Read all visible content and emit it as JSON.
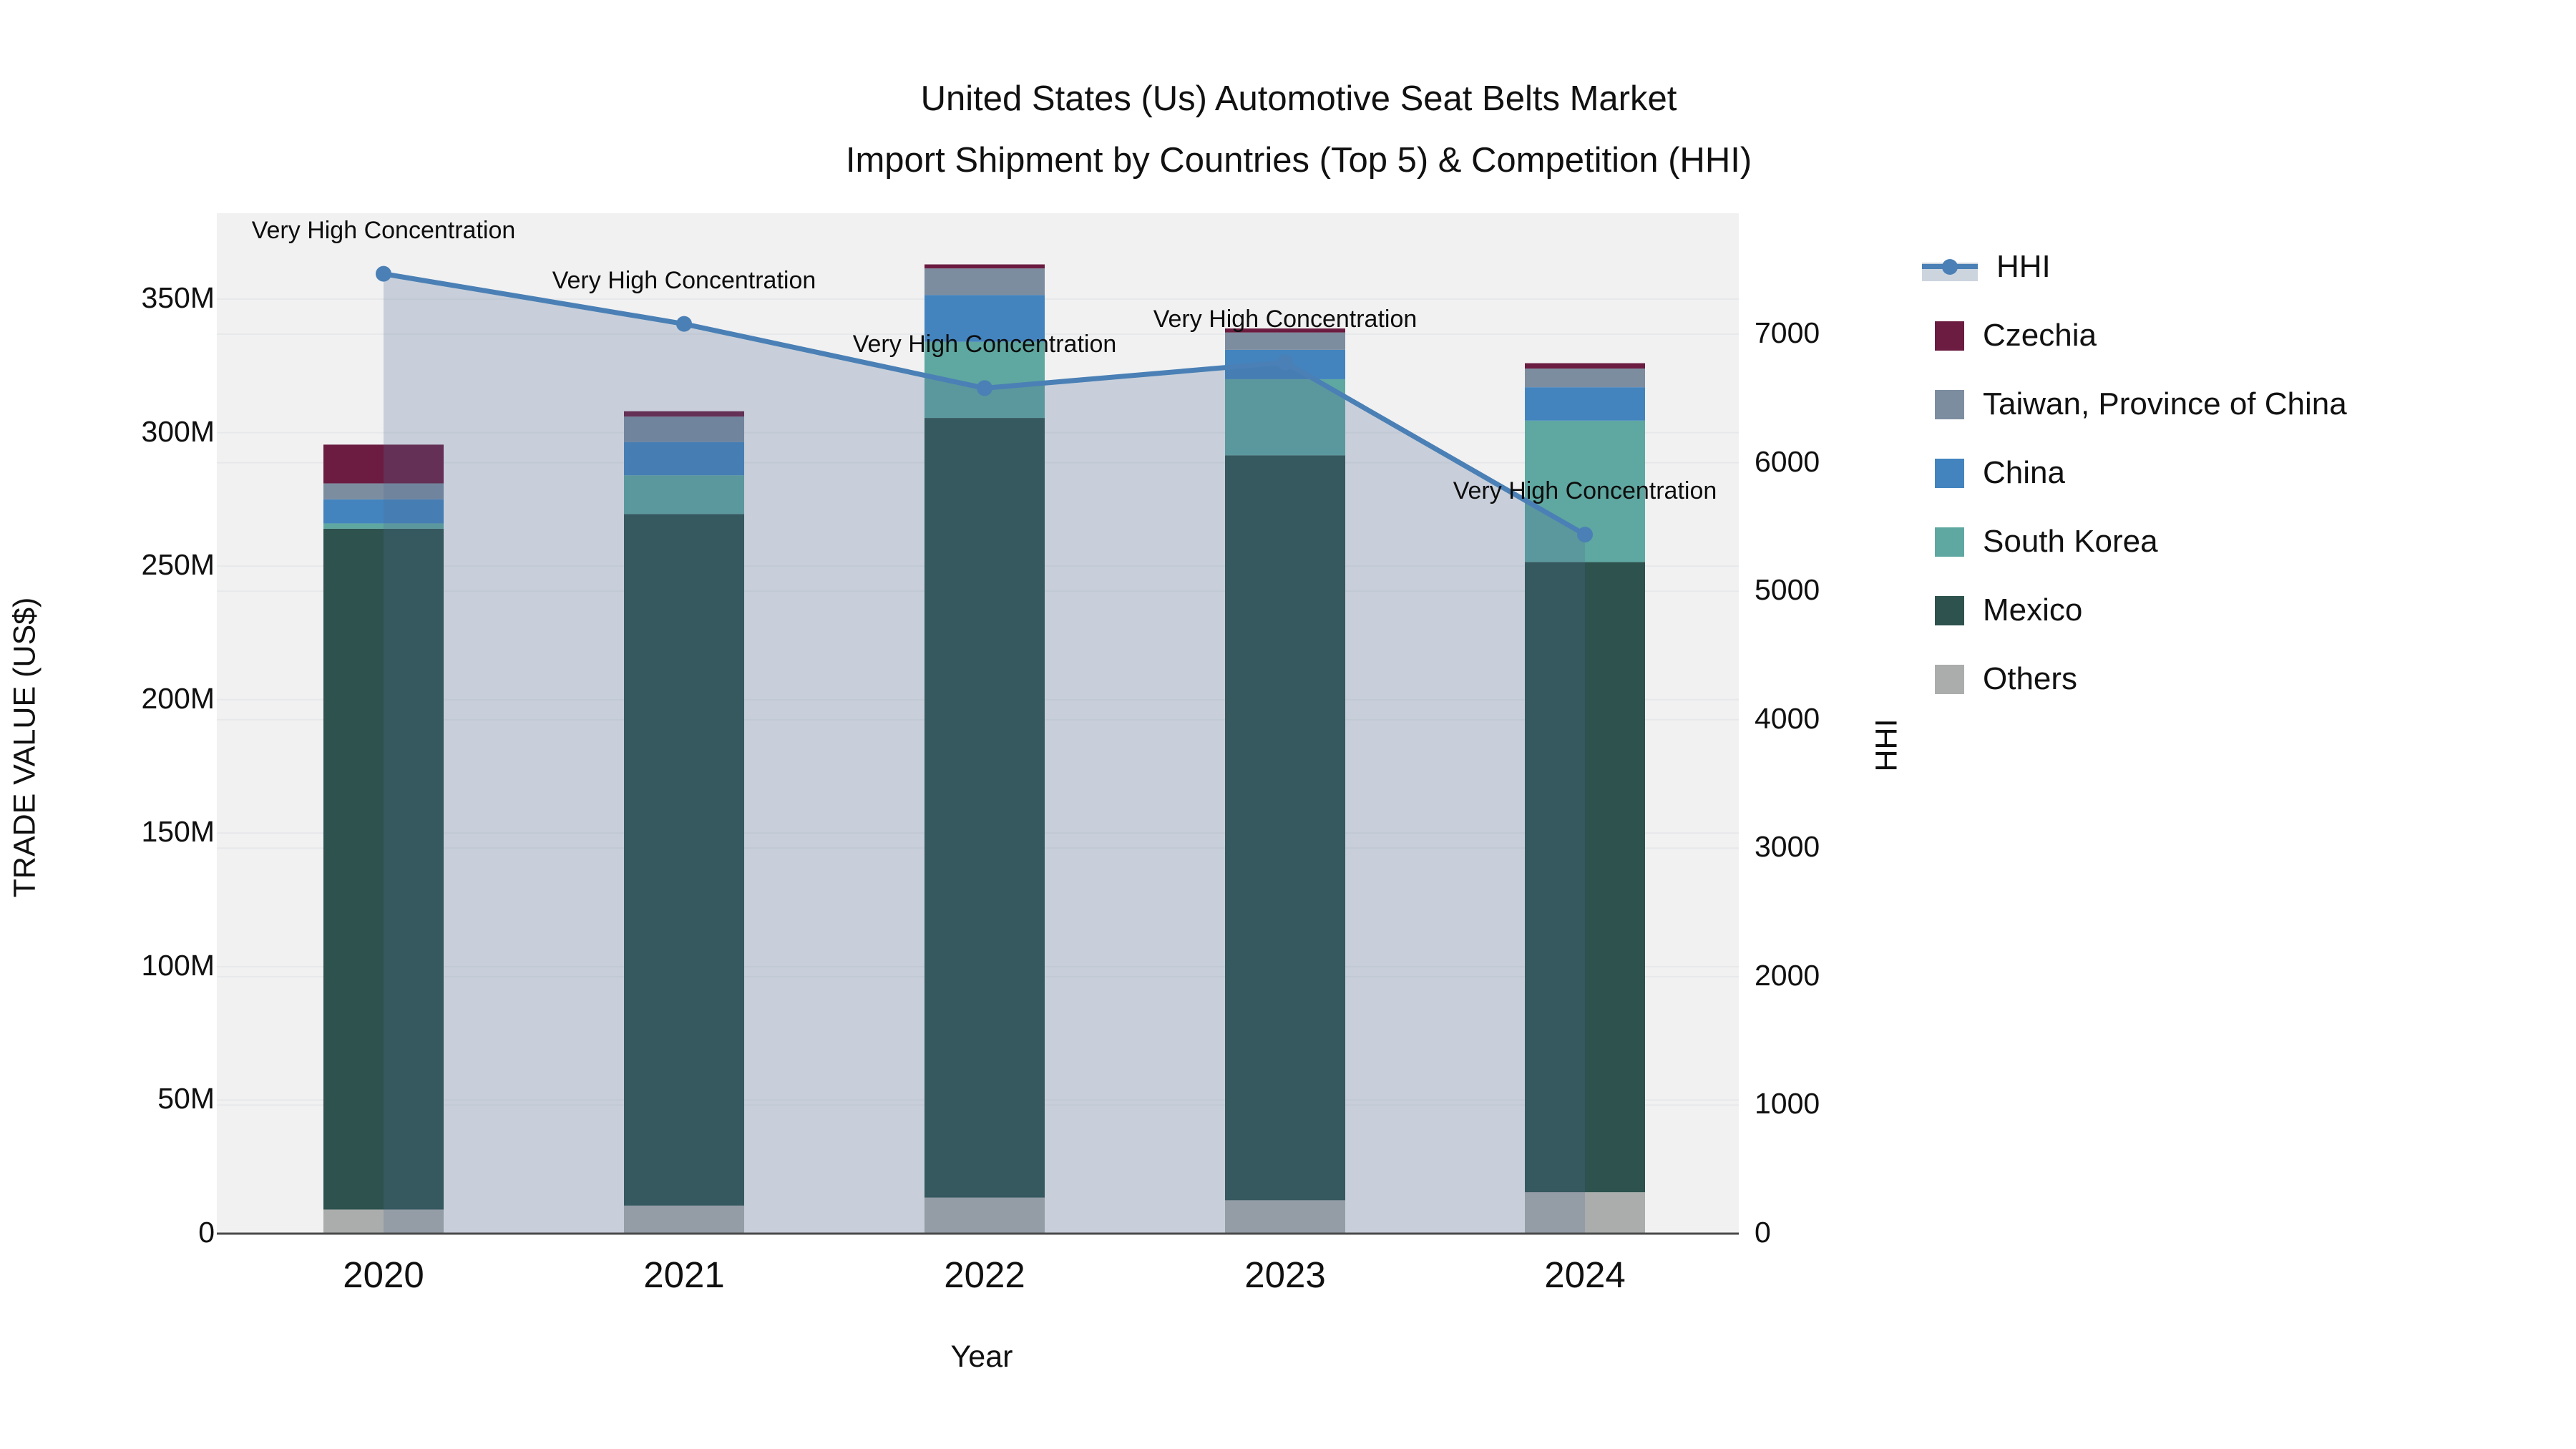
{
  "title": {
    "line1": "United States (Us) Automotive Seat Belts Market",
    "line2": "Import Shipment by Countries (Top 5) & Competition (HHI)"
  },
  "axes": {
    "left": {
      "title": "TRADE VALUE (US$)",
      "ticks": [
        {
          "label": "0",
          "value": 0
        },
        {
          "label": "50M",
          "value": 50
        },
        {
          "label": "100M",
          "value": 100
        },
        {
          "label": "150M",
          "value": 150
        },
        {
          "label": "200M",
          "value": 200
        },
        {
          "label": "250M",
          "value": 250
        },
        {
          "label": "300M",
          "value": 300
        },
        {
          "label": "350M",
          "value": 350
        }
      ]
    },
    "right": {
      "title": "HHI",
      "ticks": [
        {
          "label": "0",
          "value": 0
        },
        {
          "label": "1000",
          "value": 1000
        },
        {
          "label": "2000",
          "value": 2000
        },
        {
          "label": "3000",
          "value": 3000
        },
        {
          "label": "4000",
          "value": 4000
        },
        {
          "label": "5000",
          "value": 5000
        },
        {
          "label": "6000",
          "value": 6000
        },
        {
          "label": "7000",
          "value": 7000
        }
      ]
    },
    "x": {
      "title": "Year"
    }
  },
  "legend": {
    "items": [
      {
        "label": "HHI",
        "type": "line",
        "color": "#4a80b5"
      },
      {
        "label": "Czechia",
        "type": "swatch",
        "color": "#6b1c40"
      },
      {
        "label": "Taiwan, Province of China",
        "type": "swatch",
        "color": "#7d8da0"
      },
      {
        "label": "China",
        "type": "swatch",
        "color": "#4384bf"
      },
      {
        "label": "South Korea",
        "type": "swatch",
        "color": "#5fa7a1"
      },
      {
        "label": "Mexico",
        "type": "swatch",
        "color": "#2e524e"
      },
      {
        "label": "Others",
        "type": "swatch",
        "color": "#abadac"
      }
    ]
  },
  "annotations": [
    "Very High Concentration",
    "Very High Concentration",
    "Very High Concentration",
    "Very High Concentration",
    "Very High Concentration"
  ],
  "chart_data": {
    "type": "bar",
    "subtype": "stacked-bar-with-line",
    "title": "United States (Us) Automotive Seat Belts Market Import Shipment by Countries (Top 5) & Competition (HHI)",
    "xlabel": "Year",
    "ylabel_left": "TRADE VALUE (US$)",
    "ylabel_right": "HHI",
    "categories": [
      "2020",
      "2021",
      "2022",
      "2023",
      "2024"
    ],
    "value_unit": "million US$",
    "ylim_left": [
      0,
      382
    ],
    "ylim_right": [
      0,
      7940
    ],
    "grid": true,
    "legend_position": "right",
    "series": [
      {
        "name": "Others",
        "color": "#abadac",
        "values": [
          9,
          10.5,
          13.5,
          12.5,
          15.5
        ]
      },
      {
        "name": "Mexico",
        "color": "#2e524e",
        "values": [
          255,
          259,
          292,
          279,
          236
        ]
      },
      {
        "name": "South Korea",
        "color": "#5fa7a1",
        "values": [
          2,
          14.5,
          28.5,
          28.5,
          53
        ]
      },
      {
        "name": "China",
        "color": "#4384bf",
        "values": [
          9,
          12.5,
          17.5,
          11,
          12.5
        ]
      },
      {
        "name": "Taiwan, Province of China",
        "color": "#7d8da0",
        "values": [
          6,
          9.5,
          10,
          6.5,
          7
        ]
      },
      {
        "name": "Czechia",
        "color": "#6b1c40",
        "values": [
          14.5,
          2,
          1.5,
          1.5,
          2
        ]
      }
    ],
    "bar_totals": [
      295.5,
      308,
      363,
      339,
      326
    ],
    "line_series": {
      "name": "HHI",
      "axis": "right",
      "color": "#4a80b5",
      "fill_color": "rgba(78,106,146,0.25)",
      "values": [
        7470,
        7080,
        6580,
        6780,
        5440
      ],
      "point_annotations": [
        "Very High Concentration",
        "Very High Concentration",
        "Very High Concentration",
        "Very High Concentration",
        "Very High Concentration"
      ]
    },
    "colors": {
      "plot_background": "#f1f1f2",
      "page_background": "#ffffff",
      "gridline": "#e7e8ea",
      "axis_line": "#4a4a4a",
      "text": "#111111"
    }
  }
}
